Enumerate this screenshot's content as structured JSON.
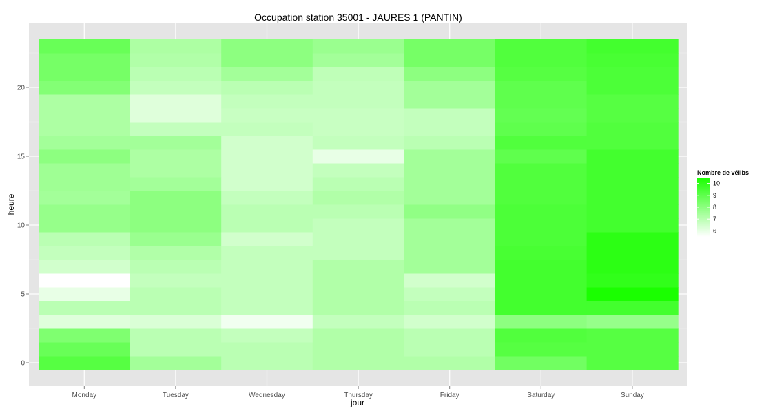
{
  "chart_data": {
    "type": "heatmap",
    "title": "Occupation station 35001 - JAURES 1 (PANTIN)",
    "xlabel": "jour",
    "ylabel": "heure",
    "x_categories": [
      "Monday",
      "Tuesday",
      "Wednesday",
      "Thursday",
      "Friday",
      "Saturday",
      "Sunday"
    ],
    "y_hours": [
      0,
      1,
      2,
      3,
      4,
      5,
      6,
      7,
      8,
      9,
      10,
      11,
      12,
      13,
      14,
      15,
      16,
      17,
      18,
      19,
      20,
      21,
      22,
      23
    ],
    "y_ticks": [
      0,
      5,
      10,
      15,
      20
    ],
    "ylim": [
      -0.5,
      23.5
    ],
    "grid": true,
    "legend": {
      "title": "Nombre de vélibs",
      "ticks": [
        6,
        7,
        8,
        9,
        10
      ],
      "range": [
        5.5,
        10.5
      ],
      "low_color": "#ffffff",
      "high_color": "#1aff00",
      "position": "right"
    },
    "values": [
      [
        9.2,
        7.5,
        7.0,
        7.2,
        7.2,
        8.6,
        9.2
      ],
      [
        8.8,
        7.0,
        7.0,
        7.2,
        7.0,
        9.2,
        9.2
      ],
      [
        8.3,
        7.0,
        6.8,
        7.2,
        7.0,
        9.3,
        9.2
      ],
      [
        6.2,
        6.3,
        5.8,
        6.8,
        6.5,
        8.0,
        7.8
      ],
      [
        7.0,
        7.0,
        6.8,
        7.2,
        7.0,
        9.6,
        9.6
      ],
      [
        6.0,
        7.0,
        6.8,
        7.2,
        6.8,
        9.6,
        10.5
      ],
      [
        5.5,
        6.8,
        6.8,
        7.2,
        6.5,
        9.6,
        10.0
      ],
      [
        6.5,
        7.0,
        6.8,
        7.2,
        7.5,
        9.6,
        10.1
      ],
      [
        6.8,
        7.2,
        6.8,
        6.8,
        7.5,
        9.5,
        10.1
      ],
      [
        7.0,
        7.7,
        6.5,
        6.8,
        7.5,
        9.4,
        10.1
      ],
      [
        7.8,
        8.0,
        7.0,
        6.8,
        7.5,
        9.4,
        9.6
      ],
      [
        7.8,
        8.0,
        7.0,
        7.0,
        7.9,
        9.4,
        9.6
      ],
      [
        7.5,
        8.0,
        6.8,
        7.2,
        7.5,
        9.3,
        9.6
      ],
      [
        7.6,
        7.5,
        6.5,
        7.0,
        7.5,
        9.3,
        9.6
      ],
      [
        7.6,
        7.3,
        6.5,
        6.8,
        7.5,
        9.3,
        9.6
      ],
      [
        8.0,
        7.3,
        6.5,
        6.0,
        7.5,
        9.0,
        9.6
      ],
      [
        7.5,
        7.5,
        6.5,
        6.8,
        7.0,
        9.3,
        9.3
      ],
      [
        7.3,
        6.8,
        6.8,
        6.7,
        6.8,
        9.0,
        9.3
      ],
      [
        7.3,
        6.2,
        6.7,
        6.7,
        6.8,
        8.9,
        9.2
      ],
      [
        7.3,
        6.2,
        6.8,
        6.8,
        7.5,
        9.0,
        9.2
      ],
      [
        8.2,
        6.8,
        7.0,
        6.8,
        7.5,
        9.0,
        9.4
      ],
      [
        8.5,
        7.0,
        7.5,
        6.9,
        8.0,
        9.2,
        9.4
      ],
      [
        8.5,
        7.2,
        8.0,
        7.5,
        8.5,
        9.3,
        9.5
      ],
      [
        8.8,
        7.3,
        8.0,
        7.7,
        8.5,
        9.3,
        9.6
      ]
    ]
  }
}
